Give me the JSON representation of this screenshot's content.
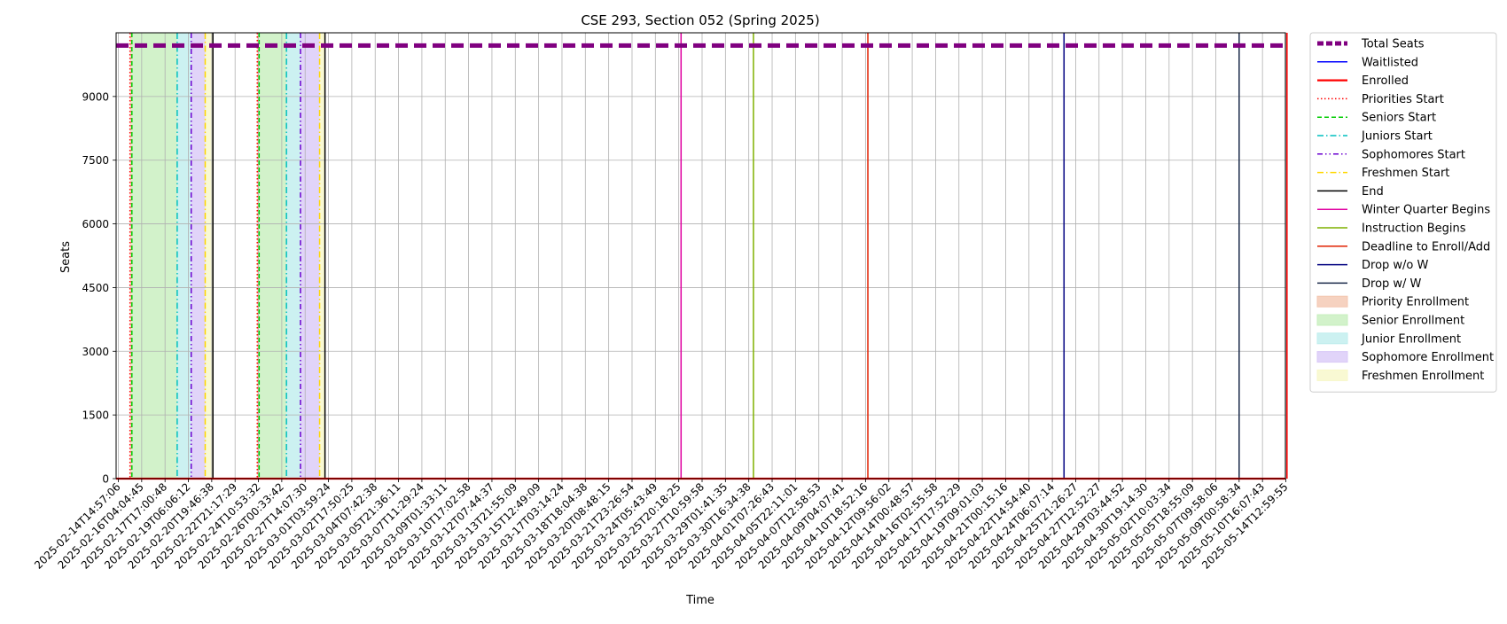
{
  "chart_data": {
    "type": "line",
    "title": "CSE 293, Section 052 (Spring 2025)",
    "xlabel": "Time",
    "ylabel": "Seats",
    "ylim": [
      0,
      10500
    ],
    "yticks": [
      0,
      1500,
      3000,
      4500,
      6000,
      7500,
      9000
    ],
    "grid": true,
    "legend_position": "outside right, top",
    "x_tick_labels": [
      "2025-02-14T14:57:06",
      "2025-02-16T04:04:45",
      "2025-02-17T17:00:48",
      "2025-02-19T06:06:12",
      "2025-02-20T19:46:38",
      "2025-02-22T21:17:29",
      "2025-02-24T10:53:32",
      "2025-02-26T00:33:42",
      "2025-02-27T14:07:30",
      "2025-03-01T03:59:24",
      "2025-03-02T17:50:25",
      "2025-03-04T07:42:38",
      "2025-03-05T21:36:11",
      "2025-03-07T11:29:24",
      "2025-03-09T01:33:11",
      "2025-03-10T17:02:58",
      "2025-03-12T07:44:37",
      "2025-03-13T21:55:09",
      "2025-03-15T12:49:09",
      "2025-03-17T03:14:24",
      "2025-03-18T18:04:38",
      "2025-03-20T08:48:15",
      "2025-03-21T23:26:54",
      "2025-03-24T05:43:49",
      "2025-03-25T20:18:25",
      "2025-03-27T10:59:58",
      "2025-03-29T01:41:35",
      "2025-03-30T16:34:38",
      "2025-04-01T07:26:43",
      "2025-04-05T22:11:01",
      "2025-04-07T12:58:53",
      "2025-04-09T04:07:41",
      "2025-04-10T18:52:16",
      "2025-04-12T09:56:02",
      "2025-04-14T00:48:57",
      "2025-04-16T02:55:58",
      "2025-04-17T17:52:29",
      "2025-04-19T09:01:03",
      "2025-04-21T00:15:16",
      "2025-04-22T14:54:40",
      "2025-04-24T06:07:14",
      "2025-04-25T21:26:27",
      "2025-04-27T12:52:27",
      "2025-04-29T03:44:52",
      "2025-04-30T19:14:30",
      "2025-05-02T10:03:34",
      "2025-05-05T18:55:09",
      "2025-05-07T09:58:06",
      "2025-05-09T00:58:34",
      "2025-05-10T16:07:43",
      "2025-05-14T12:59:55"
    ],
    "series": [
      {
        "name": "Total Seats",
        "color": "#800080",
        "style": "dashed-thick",
        "value": 10200
      },
      {
        "name": "Waitlisted",
        "color": "#0000ff",
        "style": "solid",
        "value": 0
      },
      {
        "name": "Enrolled",
        "color": "#ff0000",
        "style": "solid-thick",
        "value": 0
      }
    ],
    "event_lines": [
      {
        "name": "Priorities Start",
        "color": "#ff0000",
        "style": "dotted",
        "x_index": 0.5
      },
      {
        "name": "Seniors Start",
        "color": "#00cc00",
        "style": "dashed",
        "x_index": 0.58
      },
      {
        "name": "Juniors Start",
        "color": "#00bfbf",
        "style": "dashdot",
        "x_index": 2.52
      },
      {
        "name": "Sophomores Start",
        "color": "#6a00d0",
        "style": "dashdotdot",
        "x_index": 3.12
      },
      {
        "name": "Freshmen Start",
        "color": "#ffd700",
        "style": "dashdot",
        "x_index": 3.72
      },
      {
        "name": "End",
        "color": "#000000",
        "style": "solid",
        "x_index": 4.05
      },
      {
        "name": "Priorities Start",
        "color": "#ff0000",
        "style": "dotted",
        "x_index": 5.95
      },
      {
        "name": "Seniors Start",
        "color": "#00cc00",
        "style": "dashed",
        "x_index": 6.03
      },
      {
        "name": "Juniors Start",
        "color": "#00bfbf",
        "style": "dashdot",
        "x_index": 7.2
      },
      {
        "name": "Sophomores Start",
        "color": "#6a00d0",
        "style": "dashdotdot",
        "x_index": 7.8
      },
      {
        "name": "Freshmen Start",
        "color": "#ffd700",
        "style": "dashdot",
        "x_index": 8.62
      },
      {
        "name": "End",
        "color": "#000000",
        "style": "solid",
        "x_index": 8.85
      },
      {
        "name": "Winter Quarter Begins",
        "color": "#e000a0",
        "style": "solid",
        "x_index": 24.1
      },
      {
        "name": "Instruction Begins",
        "color": "#7fb000",
        "style": "solid",
        "x_index": 27.2
      },
      {
        "name": "Deadline to Enroll/Add",
        "color": "#e02000",
        "style": "solid",
        "x_index": 32.1
      },
      {
        "name": "Drop w/o W",
        "color": "#000080",
        "style": "solid",
        "x_index": 40.5
      },
      {
        "name": "Drop w/ W",
        "color": "#1a2a4a",
        "style": "solid",
        "x_index": 48.0
      },
      {
        "name": "Enrolled end",
        "color": "#ff0000",
        "style": "solid",
        "x_index": 50.05
      }
    ],
    "shaded_regions": [
      {
        "name": "Priority Enrollment",
        "color": "#f4c7b0",
        "x_range": [
          0.5,
          0.58
        ]
      },
      {
        "name": "Senior Enrollment",
        "color": "#c7efbd",
        "x_range": [
          0.58,
          2.52
        ]
      },
      {
        "name": "Junior Enrollment",
        "color": "#bfeeee",
        "x_range": [
          2.52,
          3.12
        ]
      },
      {
        "name": "Sophomore Enrollment",
        "color": "#d9c9f7",
        "x_range": [
          3.12,
          3.72
        ]
      },
      {
        "name": "Freshmen Enrollment",
        "color": "#f8f8c8",
        "x_range": [
          3.72,
          4.05
        ]
      },
      {
        "name": "Priority Enrollment",
        "color": "#f4c7b0",
        "x_range": [
          5.95,
          6.03
        ]
      },
      {
        "name": "Senior Enrollment",
        "color": "#c7efbd",
        "x_range": [
          6.03,
          7.2
        ]
      },
      {
        "name": "Junior Enrollment",
        "color": "#bfeeee",
        "x_range": [
          7.2,
          7.8
        ]
      },
      {
        "name": "Sophomore Enrollment",
        "color": "#d9c9f7",
        "x_range": [
          7.8,
          8.62
        ]
      },
      {
        "name": "Freshmen Enrollment",
        "color": "#f8f8c8",
        "x_range": [
          8.62,
          8.85
        ]
      }
    ],
    "legend": [
      {
        "label": "Total Seats",
        "kind": "line",
        "color": "#800080",
        "style": "dashed-thick"
      },
      {
        "label": "Waitlisted",
        "kind": "line",
        "color": "#0000ff",
        "style": "solid"
      },
      {
        "label": "Enrolled",
        "kind": "line",
        "color": "#ff0000",
        "style": "solid-thick"
      },
      {
        "label": "Priorities Start",
        "kind": "line",
        "color": "#ff0000",
        "style": "dotted"
      },
      {
        "label": "Seniors Start",
        "kind": "line",
        "color": "#00cc00",
        "style": "dashed"
      },
      {
        "label": "Juniors Start",
        "kind": "line",
        "color": "#00bfbf",
        "style": "dashdot"
      },
      {
        "label": "Sophomores Start",
        "kind": "line",
        "color": "#6a00d0",
        "style": "dashdotdot"
      },
      {
        "label": "Freshmen Start",
        "kind": "line",
        "color": "#ffd700",
        "style": "dashdot"
      },
      {
        "label": "End",
        "kind": "line",
        "color": "#000000",
        "style": "solid"
      },
      {
        "label": "Winter Quarter Begins",
        "kind": "line",
        "color": "#e000a0",
        "style": "solid"
      },
      {
        "label": "Instruction Begins",
        "kind": "line",
        "color": "#7fb000",
        "style": "solid"
      },
      {
        "label": "Deadline to Enroll/Add",
        "kind": "line",
        "color": "#e02000",
        "style": "solid"
      },
      {
        "label": "Drop w/o W",
        "kind": "line",
        "color": "#000080",
        "style": "solid"
      },
      {
        "label": "Drop w/ W",
        "kind": "line",
        "color": "#1a2a4a",
        "style": "solid"
      },
      {
        "label": "Priority Enrollment",
        "kind": "patch",
        "color": "#f4c7b0"
      },
      {
        "label": "Senior Enrollment",
        "kind": "patch",
        "color": "#c7efbd"
      },
      {
        "label": "Junior Enrollment",
        "kind": "patch",
        "color": "#bfeeee"
      },
      {
        "label": "Sophomore Enrollment",
        "kind": "patch",
        "color": "#d9c9f7"
      },
      {
        "label": "Freshmen Enrollment",
        "kind": "patch",
        "color": "#f8f8c8"
      }
    ]
  }
}
